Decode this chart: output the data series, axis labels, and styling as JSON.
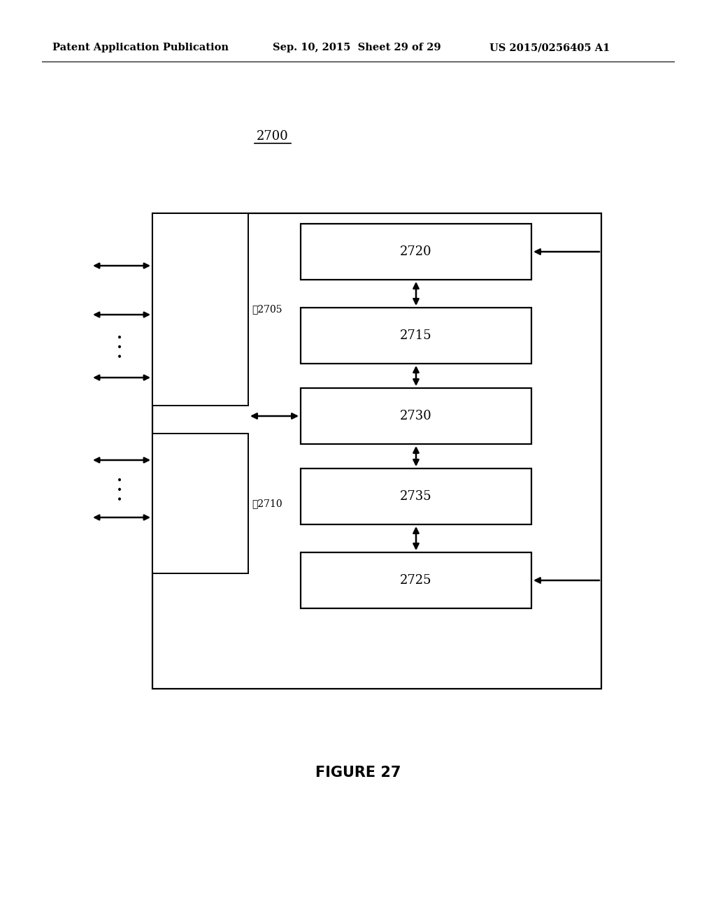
{
  "bg_color": "#ffffff",
  "header_left": "Patent Application Publication",
  "header_center": "Sep. 10, 2015  Sheet 29 of 29",
  "header_right": "US 2015/0256405 A1",
  "figure_label": "FIGURE 27",
  "diagram_label": "2700",
  "font_size_block": 13,
  "font_size_header": 10.5,
  "font_size_label": 13,
  "font_size_figure": 15,
  "font_size_ref": 10
}
